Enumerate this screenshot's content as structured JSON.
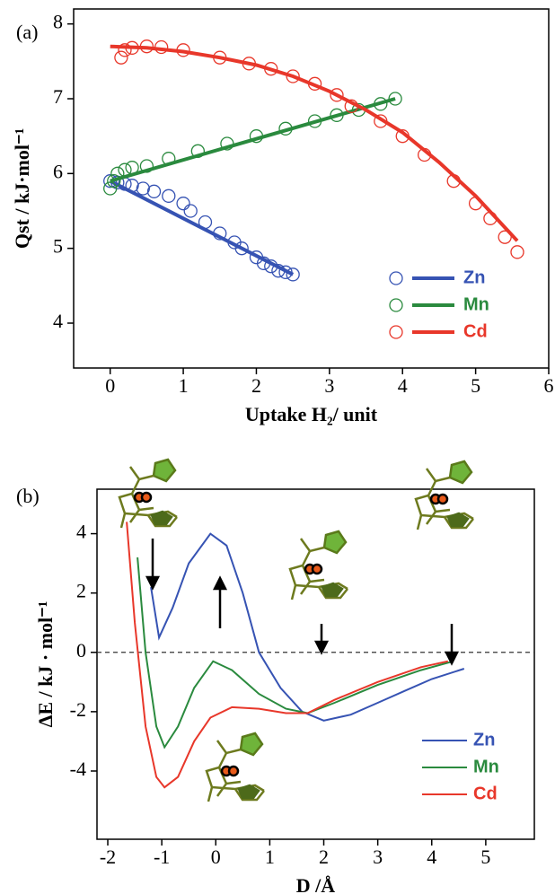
{
  "chart_data": [
    {
      "type": "scatter",
      "label": "(a)",
      "x_label": "Uptake H₂/ unit",
      "y_label": "Qst / kJ·mol⁻¹",
      "xlim": [
        -0.5,
        6
      ],
      "ylim": [
        3.4,
        8.2
      ],
      "xticks": [
        0,
        1,
        2,
        3,
        4,
        5,
        6
      ],
      "yticks": [
        4,
        5,
        6,
        7,
        8
      ],
      "legend": "lower right",
      "series": [
        {
          "name": "Zn",
          "color": "#3653b3",
          "x": [
            0,
            0.1,
            0.2,
            0.3,
            0.45,
            0.6,
            0.8,
            1.0,
            1.1,
            1.3,
            1.5,
            1.7,
            1.8,
            2.0,
            2.1,
            2.2,
            2.3,
            2.4,
            2.5
          ],
          "values": [
            5.9,
            5.88,
            5.86,
            5.84,
            5.8,
            5.76,
            5.7,
            5.6,
            5.5,
            5.35,
            5.2,
            5.08,
            5.0,
            4.88,
            4.8,
            4.76,
            4.7,
            4.68,
            4.65
          ],
          "fit": {
            "x": [
              0,
              2.5
            ],
            "values": [
              5.9,
              4.65
            ]
          }
        },
        {
          "name": "Mn",
          "color": "#2a8a3e",
          "x": [
            0,
            0.05,
            0.1,
            0.2,
            0.3,
            0.5,
            0.8,
            1.2,
            1.6,
            2.0,
            2.4,
            2.8,
            3.1,
            3.4,
            3.7,
            3.9
          ],
          "values": [
            5.8,
            5.9,
            6.0,
            6.05,
            6.08,
            6.1,
            6.2,
            6.3,
            6.4,
            6.5,
            6.6,
            6.7,
            6.78,
            6.85,
            6.93,
            7.0
          ],
          "fit": {
            "x": [
              0,
              3.9
            ],
            "values": [
              5.9,
              7.0
            ]
          }
        },
        {
          "name": "Cd",
          "color": "#e8372a",
          "x": [
            0.15,
            0.2,
            0.3,
            0.5,
            0.7,
            1.0,
            1.5,
            1.9,
            2.2,
            2.5,
            2.8,
            3.1,
            3.3,
            3.7,
            4.0,
            4.3,
            4.7,
            5.0,
            5.2,
            5.4,
            5.57
          ],
          "values": [
            7.55,
            7.65,
            7.68,
            7.7,
            7.69,
            7.65,
            7.55,
            7.47,
            7.4,
            7.3,
            7.2,
            7.05,
            6.9,
            6.7,
            6.5,
            6.25,
            5.9,
            5.6,
            5.4,
            5.15,
            4.95
          ],
          "fit": {
            "x": [
              0,
              0.5,
              1,
              1.5,
              2,
              2.5,
              3,
              3.5,
              4,
              4.5,
              5,
              5.57
            ],
            "values": [
              7.7,
              7.68,
              7.63,
              7.55,
              7.45,
              7.3,
              7.1,
              6.85,
              6.55,
              6.15,
              5.7,
              5.1
            ]
          }
        }
      ]
    },
    {
      "type": "line",
      "label": "(b)",
      "x_label": "D /Å",
      "y_label": "ΔE / kJ · mol⁻¹",
      "xlim": [
        -2.2,
        5.9
      ],
      "ylim": [
        -6.3,
        5.5
      ],
      "xticks": [
        -2,
        -1,
        0,
        1,
        2,
        3,
        4,
        5
      ],
      "yticks": [
        -4,
        -2,
        0,
        2,
        4
      ],
      "hline": 0,
      "legend": "lower right",
      "series": [
        {
          "name": "Zn",
          "color": "#3653b3",
          "x": [
            -1.2,
            -1.05,
            -0.8,
            -0.5,
            -0.1,
            0.2,
            0.5,
            0.8,
            1.2,
            1.6,
            2.0,
            2.5,
            3.0,
            3.5,
            4.0,
            4.6
          ],
          "values": [
            2.2,
            0.5,
            1.5,
            3.0,
            4.0,
            3.6,
            2.0,
            0,
            -1.2,
            -2.0,
            -2.3,
            -2.1,
            -1.7,
            -1.3,
            -0.9,
            -0.55
          ]
        },
        {
          "name": "Mn",
          "color": "#2a8a3e",
          "x": [
            -1.45,
            -1.3,
            -1.1,
            -0.95,
            -0.7,
            -0.4,
            -0.05,
            0.3,
            0.8,
            1.3,
            1.7,
            2.2,
            3.0,
            3.8,
            4.4
          ],
          "values": [
            3.2,
            0,
            -2.5,
            -3.2,
            -2.5,
            -1.2,
            -0.3,
            -0.6,
            -1.4,
            -1.9,
            -2.05,
            -1.7,
            -1.1,
            -0.6,
            -0.3
          ]
        },
        {
          "name": "Cd",
          "color": "#e8372a",
          "x": [
            -1.65,
            -1.5,
            -1.3,
            -1.1,
            -0.95,
            -0.7,
            -0.4,
            -0.1,
            0.3,
            0.8,
            1.3,
            1.7,
            2.2,
            3.0,
            3.8,
            4.3
          ],
          "values": [
            4.4,
            1.0,
            -2.5,
            -4.2,
            -4.55,
            -4.2,
            -3.0,
            -2.2,
            -1.85,
            -1.9,
            -2.05,
            -2.05,
            -1.6,
            -1.0,
            -0.5,
            -0.3
          ]
        }
      ]
    }
  ]
}
